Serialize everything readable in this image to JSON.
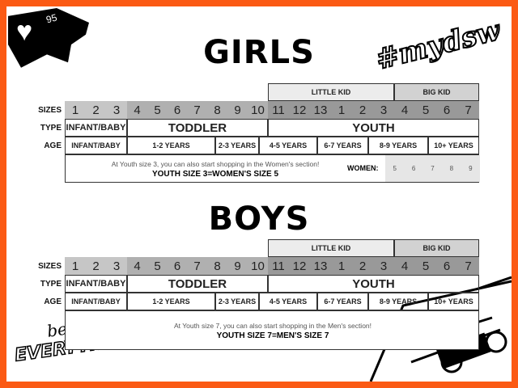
{
  "badge": {
    "icon": "heart-icon",
    "count": "95"
  },
  "hashtag": "#mydsw",
  "logo": {
    "line1": "best of",
    "line2": "EVERYTHING"
  },
  "colors": {
    "frame": "#fb5a14",
    "infant_sizes": "#c6c6c6",
    "toddler_sizes": "#b0b0b0",
    "youth_sizes": "#999999",
    "little_kid": "#ececec",
    "big_kid": "#d2d2d2",
    "women_cells": "#e6e6e6"
  },
  "labels": {
    "sizes": "SIZES",
    "type": "TYPE",
    "age": "AGE",
    "little_kid": "LITTLE KID",
    "big_kid": "BIG KID"
  },
  "sizes": [
    "1",
    "2",
    "3",
    "4",
    "5",
    "6",
    "7",
    "8",
    "9",
    "10",
    "11",
    "12",
    "13",
    "1",
    "2",
    "3",
    "4",
    "5",
    "6",
    "7"
  ],
  "types": [
    "INFANT/BABY",
    "TODDLER",
    "YOUTH"
  ],
  "ages": [
    "INFANT/BABY",
    "1-2 YEARS",
    "2-3 YEARS",
    "4-5 YEARS",
    "6-7 YEARS",
    "8-9 YEARS",
    "10+ YEARS"
  ],
  "girls": {
    "title": "GIRLS",
    "note": "At Youth size 3, you can also start shopping in the Women's section!",
    "equivalence": "YOUTH SIZE 3=WOMEN'S SIZE 5",
    "women_label": "WOMEN:",
    "women_sizes": [
      "5",
      "6",
      "7",
      "8",
      "9"
    ]
  },
  "boys": {
    "title": "BOYS",
    "note": "At Youth size 7, you can also start shopping in the Men's section!",
    "equivalence": "YOUTH SIZE 7=MEN'S SIZE 7"
  }
}
